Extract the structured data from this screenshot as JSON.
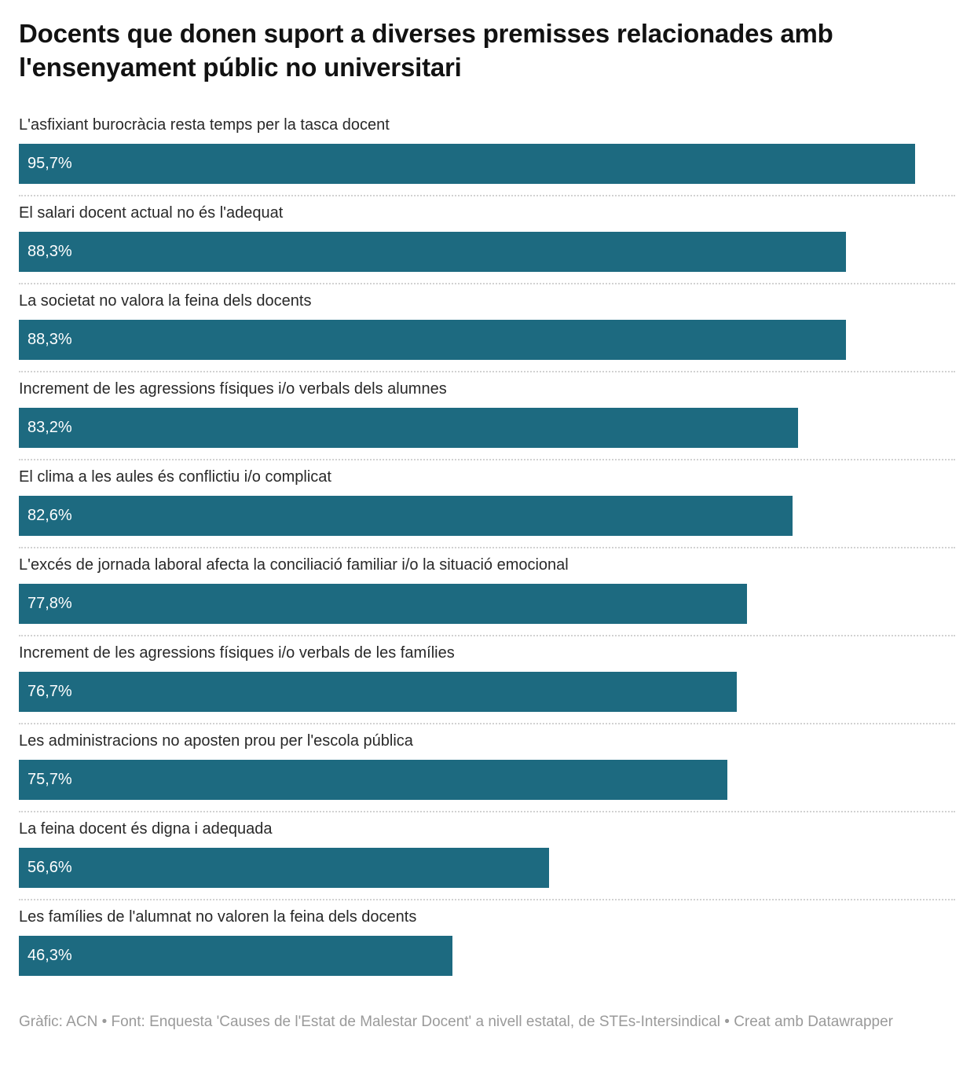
{
  "page": {
    "title": "Docents que donen suport a diverses premisses relacionades amb l'ensenyament públic no universitari",
    "footer": "Gràfic: ACN • Font: Enquesta 'Causes de l'Estat de Malestar Docent' a nivell estatal, de STEs-Intersindical • Creat amb Datawrapper"
  },
  "colors": {
    "bar": "#1d6a80",
    "bar_value_text": "#ffffff",
    "separator": "#d2d2d2",
    "footer_text": "#9a9a9a"
  },
  "chart_data": {
    "type": "bar",
    "orientation": "horizontal",
    "title": "Docents que donen suport a diverses premisses relacionades amb l'ensenyament públic no universitari",
    "xlabel": "",
    "ylabel": "",
    "value_unit": "%",
    "xlim": [
      0,
      100
    ],
    "grid": false,
    "legend": false,
    "categories": [
      "L'asfixiant burocràcia resta temps per la tasca docent",
      "El salari docent actual no és l'adequat",
      "La societat no valora la feina dels docents",
      "Increment de les agressions físiques i/o verbals dels alumnes",
      "El clima a les aules és conflictiu i/o complicat",
      "L'excés de jornada laboral afecta la conciliació familiar i/o la situació emocional",
      "Increment de les agressions físiques i/o verbals de les famílies",
      "Les administracions no aposten prou per l'escola pública",
      "La feina docent és digna i adequada",
      "Les famílies de l'alumnat no valoren la feina dels docents"
    ],
    "values": [
      95.7,
      88.3,
      88.3,
      83.2,
      82.6,
      77.8,
      76.7,
      75.7,
      56.6,
      46.3
    ],
    "rows": [
      {
        "label": "L'asfixiant burocràcia resta temps per la tasca docent",
        "value": 95.7,
        "display": "95,7%"
      },
      {
        "label": "El salari docent actual no és l'adequat",
        "value": 88.3,
        "display": "88,3%"
      },
      {
        "label": "La societat no valora la feina dels docents",
        "value": 88.3,
        "display": "88,3%"
      },
      {
        "label": "Increment de les agressions físiques i/o verbals dels alumnes",
        "value": 83.2,
        "display": "83,2%"
      },
      {
        "label": "El clima a les aules és conflictiu i/o complicat",
        "value": 82.6,
        "display": "82,6%"
      },
      {
        "label": "L'excés de jornada laboral afecta la conciliació familiar i/o la situació emocional",
        "value": 77.8,
        "display": "77,8%"
      },
      {
        "label": "Increment de les agressions físiques i/o verbals de les famílies",
        "value": 76.7,
        "display": "76,7%"
      },
      {
        "label": "Les administracions no aposten prou per l'escola pública",
        "value": 75.7,
        "display": "75,7%"
      },
      {
        "label": "La feina docent és digna i adequada",
        "value": 56.6,
        "display": "56,6%"
      },
      {
        "label": "Les famílies de l'alumnat no valoren la feina dels docents",
        "value": 46.3,
        "display": "46,3%"
      }
    ]
  }
}
